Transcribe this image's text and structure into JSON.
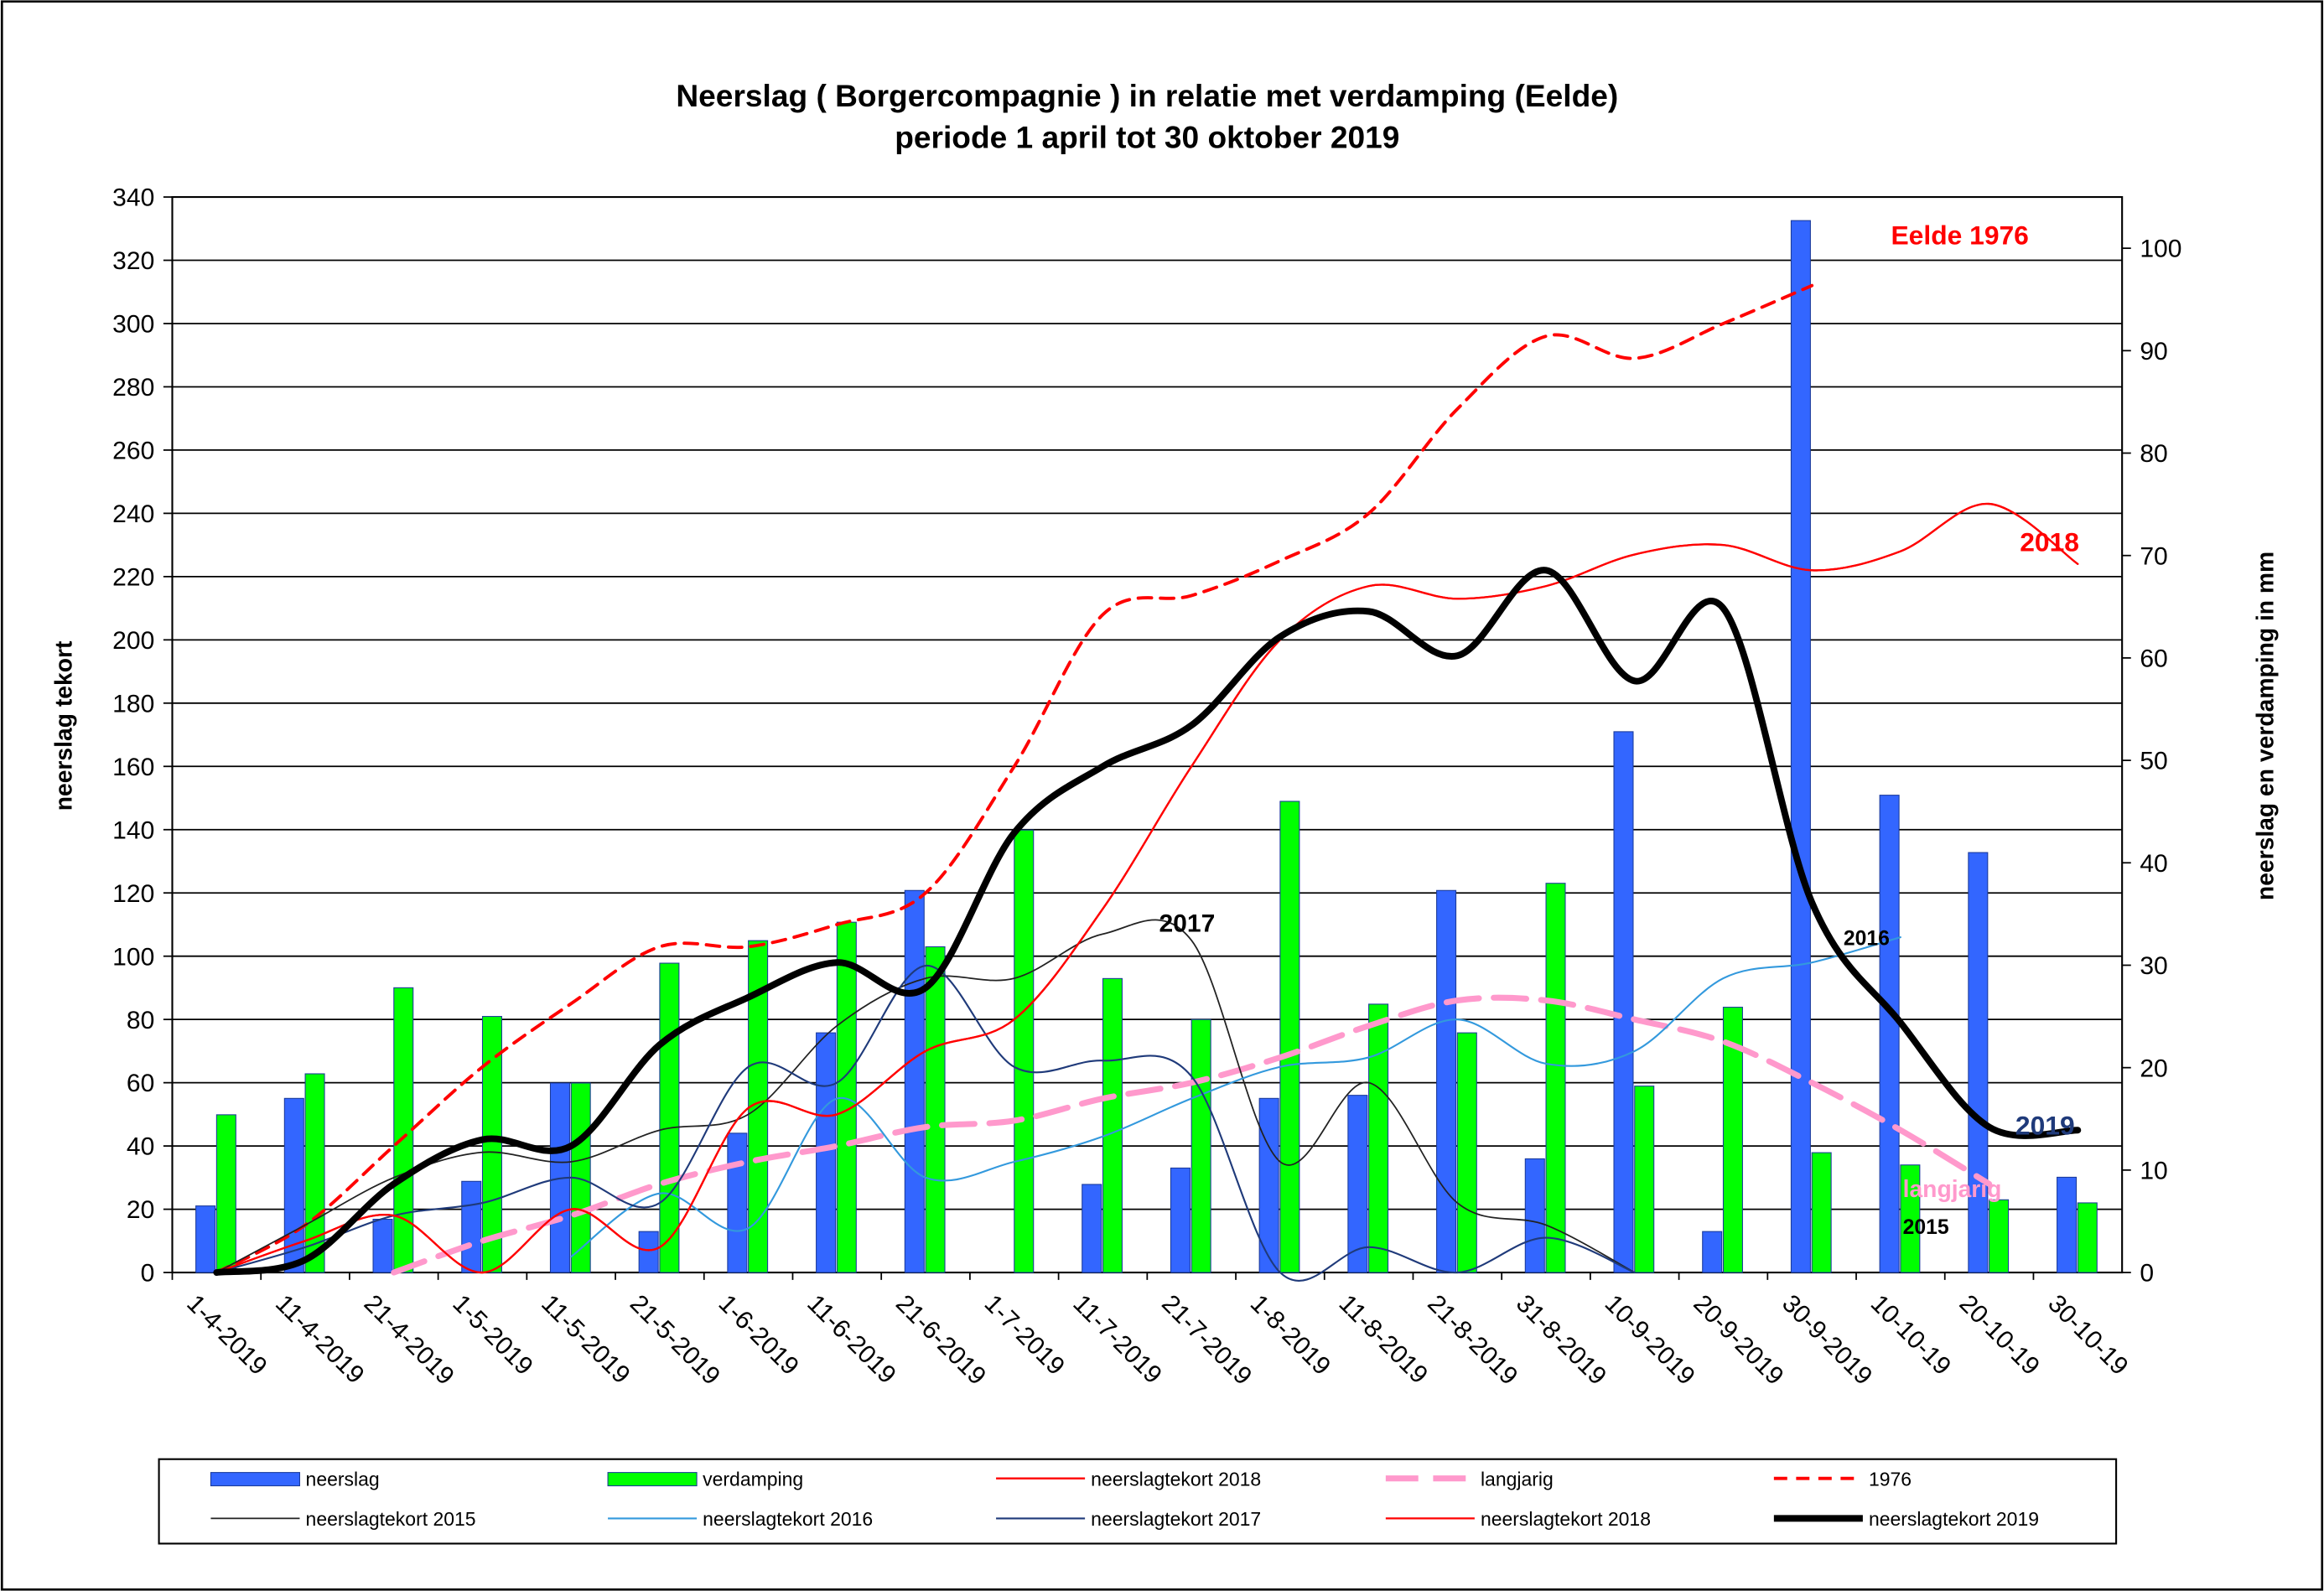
{
  "chart_data": {
    "type": "combo",
    "title": "Neerslag ( Borgercompagnie ) in relatie met verdamping (Eelde)",
    "subtitle": "periode 1 april tot 30 oktober 2019",
    "y_label": "neerslag tekort",
    "y2_label": "neerslag en verdamping in mm",
    "categories": [
      "1-4-2019",
      "11-4-2019",
      "21-4-2019",
      "1-5-2019",
      "11-5-2019",
      "21-5-2019",
      "1-6-2019",
      "11-6-2019",
      "21-6-2019",
      "1-7-2019",
      "11-7-2019",
      "21-7-2019",
      "1-8-2019",
      "11-8-2019",
      "21-8-2019",
      "31-8-2019",
      "10-9-2019",
      "20-9-2019",
      "30-9-2019",
      "10-10-19",
      "20-10-19",
      "30-10-19"
    ],
    "ylim": [
      0,
      340
    ],
    "yticks": [
      0,
      20,
      40,
      60,
      80,
      100,
      120,
      140,
      160,
      180,
      200,
      220,
      240,
      260,
      280,
      300,
      320,
      340
    ],
    "y2lim": [
      0,
      105
    ],
    "y2ticks": [
      0,
      10,
      20,
      30,
      40,
      50,
      60,
      70,
      80,
      90,
      100
    ],
    "grid": true,
    "legend": "bottom",
    "series": [
      {
        "name": "neerslag",
        "kind": "bar",
        "axis": "y2",
        "color": "#3366ff",
        "values": [
          6.5,
          17,
          5.2,
          8.9,
          18.5,
          4,
          13.6,
          23.4,
          37.3,
          null,
          8.6,
          10.2,
          17,
          17.3,
          37.3,
          11.1,
          52.8,
          4,
          102.7,
          46.6,
          41,
          9.3
        ]
      },
      {
        "name": "verdamping",
        "kind": "bar",
        "axis": "y2",
        "color": "#00ff00",
        "values": [
          15.4,
          19.4,
          27.8,
          25,
          18.5,
          30.2,
          32.4,
          34.2,
          31.8,
          43.2,
          28.7,
          24.7,
          46,
          26.2,
          23.4,
          38,
          18.2,
          25.9,
          11.7,
          10.5,
          7.1,
          6.8
        ]
      },
      {
        "name": "neerslagtekort 2018",
        "kind": "line",
        "color": "#ff0000",
        "width": 1.3,
        "values": [
          0,
          10,
          18,
          0,
          20,
          8,
          52,
          50,
          70,
          80,
          115,
          160,
          200,
          217,
          213,
          217,
          227,
          230,
          222,
          228,
          243,
          224
        ]
      },
      {
        "name": "langjarig",
        "kind": "line",
        "color": "#ff99cc",
        "width": 4,
        "dash": "22 10",
        "values": [
          null,
          null,
          0,
          10,
          18,
          28,
          35,
          40,
          46,
          48,
          55,
          60,
          68,
          78,
          86,
          86,
          80,
          73,
          60,
          45,
          28,
          null
        ]
      },
      {
        "name": "1976",
        "kind": "line",
        "color": "#ff0000",
        "width": 2.2,
        "dash": "9 6",
        "values": [
          0,
          15,
          40,
          65,
          85,
          103,
          103,
          110,
          120,
          160,
          208,
          214,
          225,
          240,
          273,
          296,
          289,
          300,
          312,
          null,
          null,
          null
        ]
      },
      {
        "name": "neerslagtekort 2015",
        "kind": "line",
        "color": "#222222",
        "width": 1,
        "values": [
          0,
          15,
          30,
          38,
          35,
          45,
          50,
          78,
          93,
          93,
          107,
          105,
          35,
          60,
          22,
          15,
          0,
          null,
          null,
          null,
          null,
          null
        ]
      },
      {
        "name": "neerslagtekort 2016",
        "kind": "line",
        "color": "#3399dd",
        "width": 1.2,
        "values": [
          null,
          null,
          null,
          null,
          5,
          25,
          14,
          55,
          30,
          35,
          43,
          55,
          65,
          68,
          80,
          66,
          70,
          93,
          98,
          106,
          null,
          null
        ]
      },
      {
        "name": "neerslagtekort 2017",
        "kind": "line",
        "color": "#1f3a7a",
        "width": 1.2,
        "values": [
          0,
          8,
          18,
          22,
          30,
          22,
          65,
          60,
          97,
          65,
          67,
          62,
          0,
          8,
          0,
          11,
          0,
          null,
          null,
          null,
          null,
          null
        ]
      },
      {
        "name": "neerslagtekort 2018",
        "kind": "line",
        "color": "#ff0000",
        "width": 1.3,
        "values": [
          0,
          10,
          18,
          0,
          20,
          8,
          52,
          50,
          70,
          80,
          115,
          160,
          200,
          217,
          213,
          217,
          227,
          230,
          222,
          228,
          243,
          224
        ]
      },
      {
        "name": "neerslagtekort 2019",
        "kind": "line",
        "color": "#000000",
        "width": 4.5,
        "values": [
          0,
          4,
          28,
          42,
          40,
          72,
          87,
          98,
          90,
          139,
          160,
          173,
          201,
          209,
          195,
          222,
          187,
          210,
          117,
          79,
          46,
          45
        ]
      }
    ],
    "annotations": [
      {
        "text": "Eelde 1976",
        "color": "#ff0000"
      },
      {
        "text": "2018",
        "color": "#ff0000"
      },
      {
        "text": "2017",
        "color": "#000000"
      },
      {
        "text": "2016",
        "color": "#000000"
      },
      {
        "text": "2019",
        "color": "#1f3a7a"
      },
      {
        "text": "langjarig",
        "color": "#ff99cc"
      },
      {
        "text": "2015",
        "color": "#000000"
      }
    ]
  }
}
